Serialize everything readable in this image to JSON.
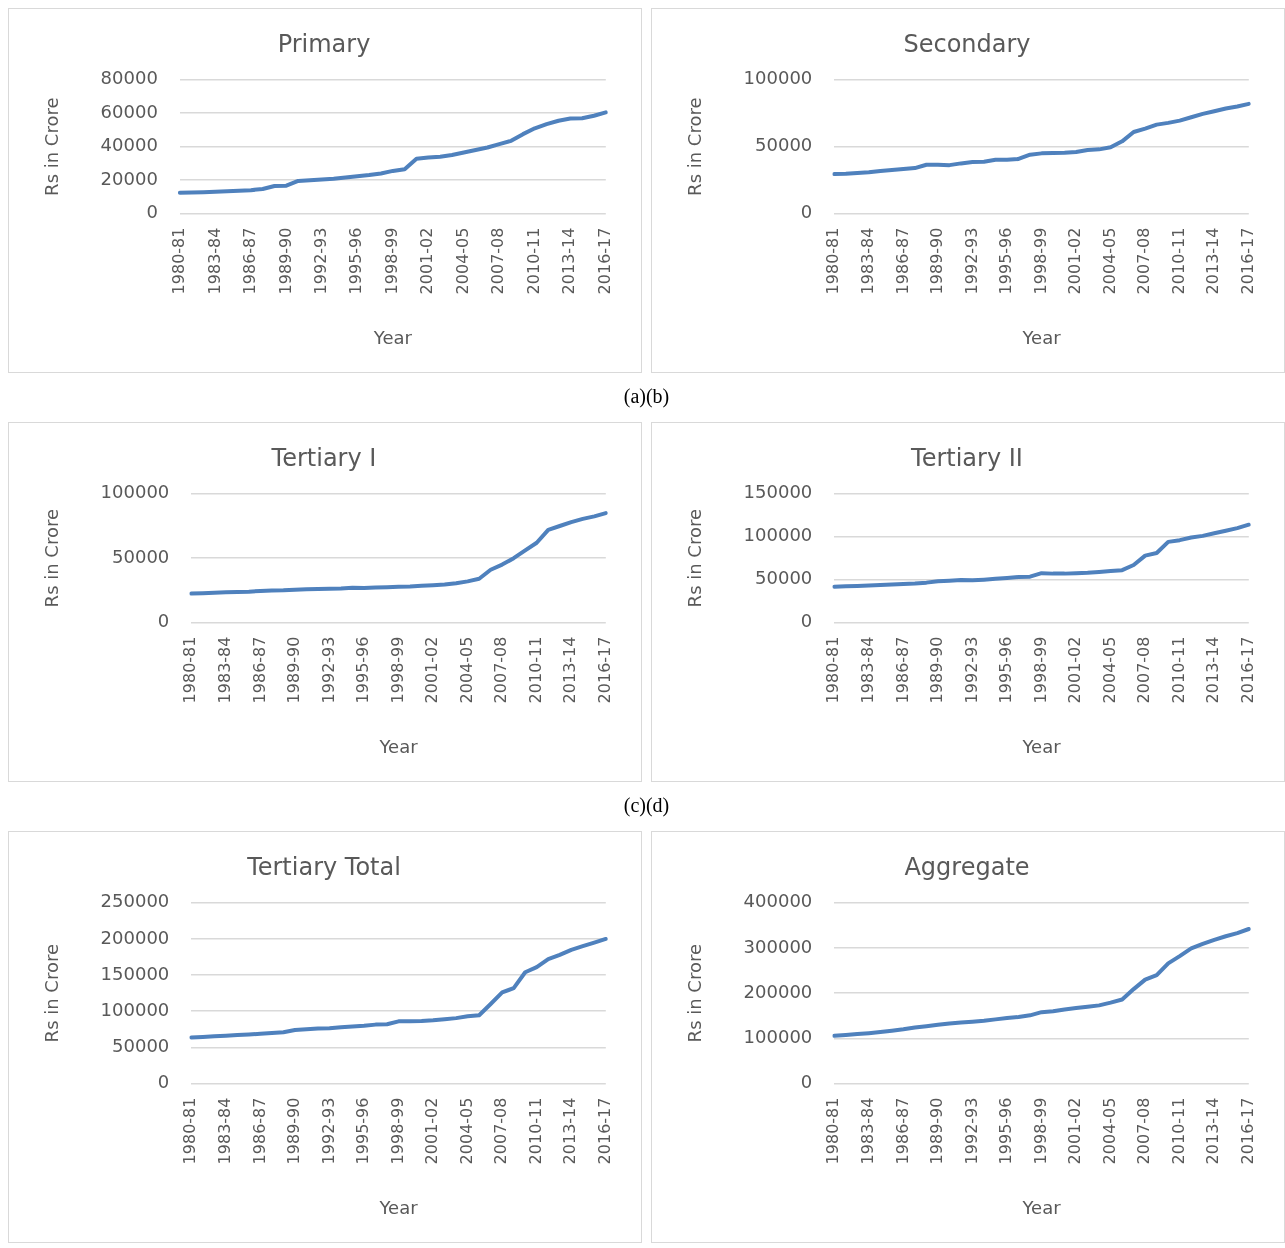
{
  "chart_data": [
    {
      "type": "line",
      "title": "Primary",
      "xlabel": "Year",
      "ylabel": "Rs in Crore",
      "categories": [
        "1980-81",
        null,
        null,
        "1983-84",
        null,
        null,
        "1986-87",
        null,
        null,
        "1989-90",
        null,
        null,
        "1992-93",
        null,
        null,
        "1995-96",
        null,
        null,
        "1998-99",
        null,
        null,
        "2001-02",
        null,
        null,
        "2004-05",
        null,
        null,
        "2007-08",
        null,
        null,
        "2010-11",
        null,
        null,
        "2013-14",
        null,
        null,
        "2016-17"
      ],
      "series": [
        {
          "color": "#4f81bd",
          "values": [
            12400,
            12600,
            12800,
            13000,
            13300,
            13600,
            14000,
            14700,
            16500,
            16700,
            19500,
            19900,
            20300,
            20800,
            21500,
            22300,
            23000,
            24000,
            25500,
            26500,
            32800,
            33500,
            34000,
            35000,
            36500,
            38000,
            39500,
            41500,
            43500,
            47500,
            51000,
            53500,
            55500,
            56800,
            57000,
            58500,
            60500
          ]
        }
      ],
      "ylim": [
        0,
        80000
      ],
      "yticks": [
        0,
        20000,
        40000,
        60000,
        80000
      ],
      "grid": "y",
      "legend": false,
      "marker": "none",
      "annotations": [
        "(a)(b)"
      ]
    },
    {
      "type": "line",
      "title": "Secondary",
      "xlabel": "Year",
      "ylabel": "Rs in Crore",
      "categories": [
        "1980-81",
        null,
        null,
        "1983-84",
        null,
        null,
        "1986-87",
        null,
        null,
        "1989-90",
        null,
        null,
        "1992-93",
        null,
        null,
        "1995-96",
        null,
        null,
        "1998-99",
        null,
        null,
        "2001-02",
        null,
        null,
        "2004-05",
        null,
        null,
        "2007-08",
        null,
        null,
        "2010-11",
        null,
        null,
        "2013-14",
        null,
        null,
        "2016-17"
      ],
      "series": [
        {
          "color": "#4f81bd",
          "values": [
            29500,
            29800,
            30300,
            30800,
            31800,
            32500,
            33300,
            34000,
            36500,
            36500,
            36200,
            37500,
            38500,
            38800,
            40200,
            40300,
            40800,
            44000,
            45000,
            45200,
            45500,
            46000,
            47500,
            48000,
            49500,
            54000,
            61000,
            63500,
            66500,
            67800,
            69500,
            72000,
            74500,
            76500,
            78500,
            80000,
            82000
          ]
        }
      ],
      "ylim": [
        0,
        100000
      ],
      "yticks": [
        0,
        50000,
        100000
      ],
      "grid": "y",
      "legend": false,
      "marker": "none"
    },
    {
      "type": "line",
      "title": "Tertiary I",
      "xlabel": "Year",
      "ylabel": "Rs in Crore",
      "categories": [
        "1980-81",
        null,
        null,
        "1983-84",
        null,
        null,
        "1986-87",
        null,
        null,
        "1989-90",
        null,
        null,
        "1992-93",
        null,
        null,
        "1995-96",
        null,
        null,
        "1998-99",
        null,
        null,
        "2001-02",
        null,
        null,
        "2004-05",
        null,
        null,
        "2007-08",
        null,
        null,
        "2010-11",
        null,
        null,
        "2013-14",
        null,
        null,
        "2016-17"
      ],
      "series": [
        {
          "color": "#4f81bd",
          "values": [
            22500,
            22800,
            23200,
            23500,
            23700,
            24000,
            24500,
            24800,
            25000,
            25500,
            25800,
            26000,
            26300,
            26500,
            27000,
            26800,
            27200,
            27500,
            27800,
            28000,
            28500,
            29000,
            29500,
            30500,
            32000,
            34000,
            41000,
            45000,
            50000,
            56000,
            62000,
            72000,
            75000,
            78000,
            80500,
            82500,
            85000
          ]
        }
      ],
      "ylim": [
        0,
        100000
      ],
      "yticks": [
        0,
        50000,
        100000
      ],
      "grid": "y",
      "legend": false,
      "marker": "none",
      "annotations": [
        "(c)(d)"
      ]
    },
    {
      "type": "line",
      "title": "Tertiary II",
      "xlabel": "Year",
      "ylabel": "Rs in Crore",
      "categories": [
        "1980-81",
        null,
        null,
        "1983-84",
        null,
        null,
        "1986-87",
        null,
        null,
        "1989-90",
        null,
        null,
        "1992-93",
        null,
        null,
        "1995-96",
        null,
        null,
        "1998-99",
        null,
        null,
        "2001-02",
        null,
        null,
        "2004-05",
        null,
        null,
        "2007-08",
        null,
        null,
        "2010-11",
        null,
        null,
        "2013-14",
        null,
        null,
        "2016-17"
      ],
      "series": [
        {
          "color": "#4f81bd",
          "values": [
            41700,
            42200,
            42700,
            43200,
            43700,
            44200,
            44800,
            45500,
            46500,
            48000,
            48800,
            49500,
            49200,
            50000,
            51000,
            52000,
            53000,
            53500,
            57500,
            57000,
            57000,
            57500,
            58000,
            59000,
            60000,
            61000,
            67000,
            78000,
            81000,
            94000,
            96000,
            99000,
            101000,
            104000,
            107000,
            110000,
            114000
          ]
        }
      ],
      "ylim": [
        0,
        150000
      ],
      "yticks": [
        0,
        50000,
        100000,
        150000
      ],
      "grid": "y",
      "legend": false,
      "marker": "none"
    },
    {
      "type": "line",
      "title": "Tertiary Total",
      "xlabel": "Year",
      "ylabel": "Rs in Crore",
      "categories": [
        "1980-81",
        null,
        null,
        "1983-84",
        null,
        null,
        "1986-87",
        null,
        null,
        "1989-90",
        null,
        null,
        "1992-93",
        null,
        null,
        "1995-96",
        null,
        null,
        "1998-99",
        null,
        null,
        "2001-02",
        null,
        null,
        "2004-05",
        null,
        null,
        "2007-08",
        null,
        null,
        "2010-11",
        null,
        null,
        "2013-14",
        null,
        null,
        "2016-17"
      ],
      "series": [
        {
          "color": "#4f81bd",
          "values": [
            63800,
            64500,
            65500,
            66200,
            67000,
            67800,
            68800,
            69800,
            71000,
            74000,
            75000,
            76000,
            76600,
            78000,
            79000,
            80000,
            81500,
            82000,
            86000,
            86200,
            86500,
            87500,
            89000,
            90500,
            93000,
            94500,
            110000,
            126000,
            132000,
            154000,
            161000,
            172000,
            178000,
            185000,
            190000,
            195000,
            200000
          ]
        }
      ],
      "ylim": [
        0,
        250000
      ],
      "yticks": [
        0,
        50000,
        100000,
        150000,
        200000,
        250000
      ],
      "grid": "y",
      "legend": false,
      "marker": "none"
    },
    {
      "type": "line",
      "title": "Aggregate",
      "xlabel": "Year",
      "ylabel": "Rs in Crore",
      "categories": [
        "1980-81",
        null,
        null,
        "1983-84",
        null,
        null,
        "1986-87",
        null,
        null,
        "1989-90",
        null,
        null,
        "1992-93",
        null,
        null,
        "1995-96",
        null,
        null,
        "1998-99",
        null,
        null,
        "2001-02",
        null,
        null,
        "2004-05",
        null,
        null,
        "2007-08",
        null,
        null,
        "2010-11",
        null,
        null,
        "2013-14",
        null,
        null,
        "2016-17"
      ],
      "series": [
        {
          "color": "#4f81bd",
          "values": [
            105600,
            107500,
            109500,
            111500,
            114000,
            117000,
            120000,
            124000,
            127000,
            130000,
            133000,
            135000,
            137000,
            139000,
            142000,
            145000,
            147500,
            151000,
            158000,
            160000,
            164000,
            167000,
            170000,
            173000,
            179000,
            186000,
            209000,
            230000,
            240000,
            266000,
            282000,
            299000,
            309000,
            318000,
            326000,
            333000,
            342000
          ]
        }
      ],
      "ylim": [
        0,
        400000
      ],
      "yticks": [
        0,
        100000,
        200000,
        300000,
        400000
      ],
      "grid": "y",
      "legend": false,
      "marker": "none"
    }
  ]
}
